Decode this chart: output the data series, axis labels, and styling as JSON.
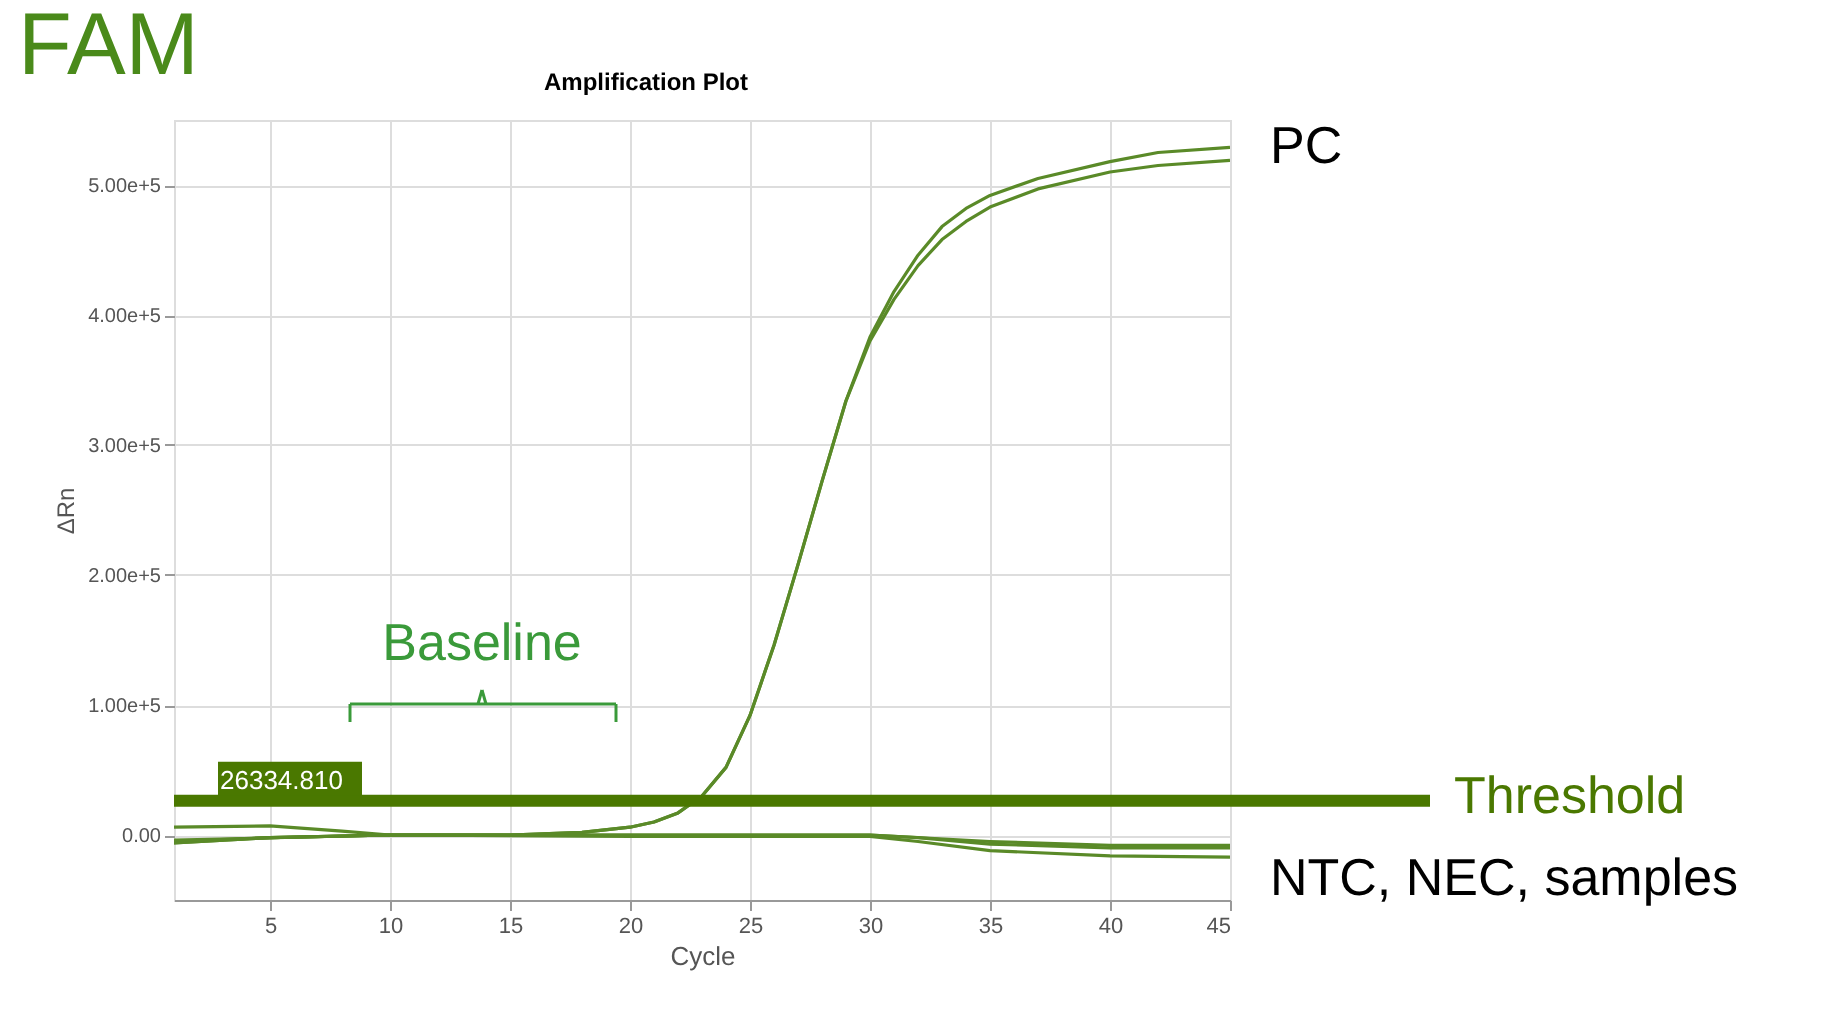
{
  "chart_data": {
    "type": "line",
    "title": "FAM",
    "subtitle": "Amplification Plot",
    "xlabel": "Cycle",
    "ylabel": "ΔRn",
    "xlim": [
      1,
      45
    ],
    "xticks": [
      5,
      10,
      15,
      20,
      25,
      30,
      35,
      40,
      45
    ],
    "ylim": [
      -50000,
      550000
    ],
    "yticks": [
      {
        "value": 0,
        "label": "0.00"
      },
      {
        "value": 100000,
        "label": "1.00e+5"
      },
      {
        "value": 200000,
        "label": "2.00e+5"
      },
      {
        "value": 300000,
        "label": "3.00e+5"
      },
      {
        "value": 400000,
        "label": "4.00e+5"
      },
      {
        "value": 500000,
        "label": "5.00e+5"
      }
    ],
    "grid": true,
    "legend": false,
    "marker": "none",
    "line_style": "solid",
    "series": [
      {
        "color": "#5a8a28",
        "x": [
          1,
          5,
          10,
          15,
          18,
          20,
          21,
          22,
          23,
          24,
          25,
          26,
          27,
          28,
          29,
          30,
          31,
          32,
          33,
          34,
          35,
          37,
          40,
          42,
          45
        ],
        "values": [
          -6000,
          -2000,
          0,
          0,
          2000,
          6000,
          10000,
          17000,
          30000,
          52000,
          92000,
          146000,
          208000,
          272000,
          334000,
          383000,
          418000,
          446000,
          468000,
          482000,
          492000,
          505000,
          518000,
          525000,
          529000
        ]
      },
      {
        "color": "#5a8a28",
        "x": [
          1,
          5,
          10,
          15,
          18,
          20,
          21,
          22,
          23,
          24,
          25,
          26,
          27,
          28,
          29,
          30,
          31,
          32,
          33,
          34,
          35,
          37,
          40,
          42,
          45
        ],
        "values": [
          -6000,
          -2000,
          0,
          0,
          2000,
          6000,
          10000,
          17000,
          30000,
          52000,
          92000,
          146000,
          208000,
          272000,
          334000,
          380000,
          412000,
          438000,
          458000,
          472000,
          483000,
          497000,
          510000,
          515000,
          519000
        ]
      },
      {
        "color": "#5a8a28",
        "x": [
          1,
          5,
          8,
          10,
          20,
          30,
          32,
          35,
          40,
          45
        ],
        "values": [
          6000,
          7000,
          3000,
          0,
          0,
          0,
          -2000,
          -7000,
          -10000,
          -10000
        ]
      },
      {
        "color": "#5a8a28",
        "x": [
          1,
          5,
          10,
          20,
          30,
          32,
          35,
          40,
          45
        ],
        "values": [
          -5000,
          -2000,
          0,
          -1000,
          -1000,
          -5000,
          -12000,
          -16000,
          -17000
        ]
      },
      {
        "color": "#5a8a28",
        "x": [
          1,
          10,
          30,
          35,
          40,
          45
        ],
        "values": [
          -4000,
          0,
          0,
          -5000,
          -8000,
          -8000
        ]
      }
    ],
    "ref_lines": [
      {
        "axis": "y",
        "value": 26334.81,
        "label": "26334.810",
        "color": "#4a7800"
      }
    ],
    "annotations": [
      "Baseline",
      {
        "text": "PC",
        "x": 45,
        "y": 529000
      },
      "Threshold",
      {
        "text": "NTC, NEC, samples",
        "x": 45,
        "y": -12000
      }
    ]
  }
}
